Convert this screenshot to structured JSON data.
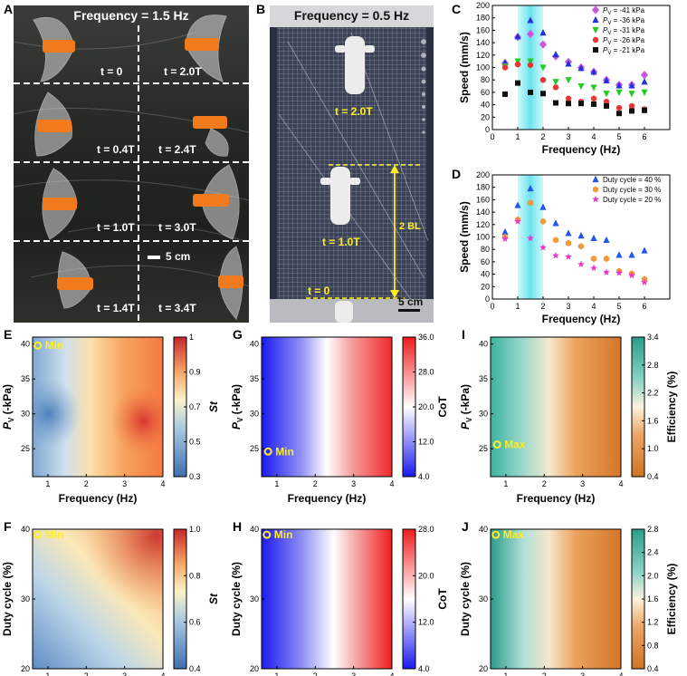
{
  "panels": {
    "A": {
      "label": "A",
      "title": "Frequency = 1.5 Hz",
      "time_labels": [
        "t = 0",
        "t = 2.0T",
        "t = 0.4T",
        "t = 2.4T",
        "t = 1.0T",
        "t = 3.0T",
        "t = 1.4T",
        "t = 3.4T"
      ],
      "scale_bar": "5 cm"
    },
    "B": {
      "label": "B",
      "title": "Frequency = 0.5 Hz",
      "time_labels": [
        "t = 2.0T",
        "t = 1.0T",
        "t = 0"
      ],
      "distance": "2 BL",
      "scale_bar": "5 cm"
    },
    "E": {
      "label": "E",
      "ylabel": "P_V (-kPa)",
      "xlabel": "Frequency (Hz)",
      "cbar_label": "St",
      "marker": "Min",
      "cbar_ticks": [
        "1",
        "0.9",
        "0.7",
        "0.5",
        "0.3"
      ]
    },
    "F": {
      "label": "F",
      "ylabel": "Duty cycle (%)",
      "xlabel": "Frequency (Hz)",
      "cbar_label": "St",
      "marker": "Min",
      "cbar_ticks": [
        "1.0",
        "0.8",
        "0.6",
        "0.4"
      ]
    },
    "G": {
      "label": "G",
      "ylabel": "P_V (-kPa)",
      "xlabel": "Frequency (Hz)",
      "cbar_label": "CoT",
      "marker": "Min",
      "cbar_ticks": [
        "36.0",
        "28.0",
        "20.0",
        "12.0",
        "4.0"
      ]
    },
    "H": {
      "label": "H",
      "ylabel": "Duty cycle (%)",
      "xlabel": "Frequency (Hz)",
      "cbar_label": "CoT",
      "marker": "Min",
      "cbar_ticks": [
        "28.0",
        "20.0",
        "12.0",
        "4.0"
      ]
    },
    "I": {
      "label": "I",
      "ylabel": "P_V (-kPa)",
      "xlabel": "Frequency (Hz)",
      "cbar_label": "Efficiency (%)",
      "marker": "Max",
      "cbar_ticks": [
        "3.4",
        "2.8",
        "2.2",
        "1.6",
        "1.0",
        "0.4"
      ]
    },
    "J": {
      "label": "J",
      "ylabel": "Duty cycle (%)",
      "xlabel": "Frequency (Hz)",
      "cbar_label": "Efficiency (%)",
      "marker": "Max",
      "cbar_ticks": [
        "2.8",
        "2.4",
        "2.0",
        "1.6",
        "1.2",
        "0.8",
        "0.4"
      ]
    }
  },
  "colors": {
    "highlight": "#8ee8f0",
    "dash": "#ffffff",
    "yellow": "#ffee22",
    "fin_orange": "#f07a1c"
  },
  "chart_data": [
    {
      "id": "C",
      "label": "C",
      "type": "scatter",
      "xlabel": "Frequency (Hz)",
      "ylabel": "Speed (mm/s)",
      "xlim": [
        0,
        7
      ],
      "ylim": [
        0,
        200
      ],
      "xticks": [
        0,
        1,
        2,
        3,
        4,
        5,
        6
      ],
      "yticks": [
        0,
        20,
        40,
        60,
        80,
        100,
        120,
        140,
        160,
        180,
        200
      ],
      "highlight_band": [
        1,
        2
      ],
      "legend_position": "top-right",
      "series": [
        {
          "name": "P_V = -41 kPa",
          "legend": "P",
          "sub": "V",
          "suffix": " = -41 kPa",
          "marker": "diamond",
          "color": "#cc55dd",
          "x": [
            0.5,
            1,
            1.5,
            2,
            2.5,
            3,
            3.5,
            4,
            4.5,
            5,
            5.5,
            6
          ],
          "y": [
            107,
            149,
            154,
            137,
            118,
            109,
            100,
            93,
            80,
            72,
            72,
            88
          ]
        },
        {
          "name": "P_V = -36 kPa",
          "legend": "P",
          "sub": "V",
          "suffix": " = -36 kPa",
          "marker": "triangle-up",
          "color": "#2233dd",
          "x": [
            0.5,
            1,
            1.5,
            2,
            2.5,
            3,
            3.5,
            4,
            4.5,
            5,
            5.5,
            6
          ],
          "y": [
            108,
            150,
            176,
            156,
            121,
            106,
            99,
            93,
            79,
            71,
            71,
            77
          ]
        },
        {
          "name": "P_V = -31 kPa",
          "legend": "P",
          "sub": "V",
          "suffix": " = -31 kPa",
          "marker": "triangle-down",
          "color": "#22cc22",
          "x": [
            0.5,
            1,
            1.5,
            2,
            2.5,
            3,
            3.5,
            4,
            4.5,
            5,
            5.5,
            6
          ],
          "y": [
            102,
            110,
            110,
            100,
            77,
            80,
            70,
            68,
            58,
            60,
            58,
            60
          ]
        },
        {
          "name": "P_V = -26 kPa",
          "legend": "P",
          "sub": "V",
          "suffix": " = -26 kPa",
          "marker": "circle",
          "color": "#ee3333",
          "x": [
            0.5,
            1,
            1.5,
            2,
            2.5,
            3,
            3.5,
            4,
            4.5,
            5,
            5.5,
            6
          ],
          "y": [
            100,
            105,
            104,
            80,
            68,
            50,
            45,
            50,
            45,
            35,
            38,
            33
          ]
        },
        {
          "name": "P_V = -21 kPa",
          "legend": "P",
          "sub": "V",
          "suffix": " = -21 kPa",
          "marker": "square",
          "color": "#111111",
          "x": [
            0.5,
            1,
            1.5,
            2,
            2.5,
            3,
            3.5,
            4,
            4.5,
            5,
            5.5,
            6
          ],
          "y": [
            57,
            75,
            60,
            58,
            43,
            42,
            42,
            41,
            38,
            26,
            30,
            31
          ]
        }
      ]
    },
    {
      "id": "D",
      "label": "D",
      "type": "scatter",
      "xlabel": "Frequency (Hz)",
      "ylabel": "Speed (mm/s)",
      "xlim": [
        0,
        7
      ],
      "ylim": [
        0,
        200
      ],
      "xticks": [
        0,
        1,
        2,
        3,
        4,
        5,
        6
      ],
      "yticks": [
        0,
        20,
        40,
        60,
        80,
        100,
        120,
        140,
        160,
        180,
        200
      ],
      "highlight_band": [
        1,
        2
      ],
      "legend_position": "top-right",
      "series": [
        {
          "name": "Duty cycle = 40 %",
          "legend": "Duty cycle = 40 %",
          "marker": "triangle-up",
          "color": "#2255ee",
          "x": [
            0.5,
            1,
            1.5,
            2,
            2.5,
            3,
            3.5,
            4,
            4.5,
            5,
            5.5,
            6
          ],
          "y": [
            108,
            151,
            178,
            148,
            122,
            106,
            102,
            98,
            95,
            71,
            71,
            78
          ]
        },
        {
          "name": "Duty cycle = 30 %",
          "legend": "Duty cycle = 30 %",
          "marker": "hexagon",
          "color": "#f09a3a",
          "x": [
            0.5,
            1,
            1.5,
            2,
            2.5,
            3,
            3.5,
            4,
            4.5,
            5,
            5.5,
            6
          ],
          "y": [
            100,
            128,
            155,
            125,
            95,
            90,
            85,
            65,
            65,
            45,
            41,
            32
          ]
        },
        {
          "name": "Duty cycle = 20 %",
          "legend": "Duty cycle = 20 %",
          "marker": "star",
          "color": "#ee33cc",
          "x": [
            0.5,
            1,
            1.5,
            2,
            2.5,
            3,
            3.5,
            4,
            4.5,
            5,
            5.5,
            6
          ],
          "y": [
            97,
            125,
            98,
            83,
            70,
            68,
            56,
            50,
            43,
            42,
            38,
            27
          ]
        }
      ]
    }
  ],
  "heatmaps": {
    "E": {
      "x": [
        0.6,
        4
      ],
      "y": [
        21,
        41
      ],
      "xticks": [
        "1",
        "2",
        "3",
        "4"
      ],
      "yticks": [
        "40",
        "35",
        "30",
        "25"
      ]
    },
    "F": {
      "x": [
        0.6,
        4
      ],
      "y": [
        20,
        40
      ],
      "xticks": [
        "1",
        "2",
        "3",
        "4"
      ],
      "yticks": [
        "40",
        "30",
        "20"
      ]
    },
    "G": {
      "x": [
        0.6,
        4
      ],
      "y": [
        21,
        41
      ],
      "xticks": [
        "1",
        "2",
        "3",
        "4"
      ],
      "yticks": [
        "40",
        "35",
        "30",
        "25"
      ]
    },
    "H": {
      "x": [
        0.6,
        4
      ],
      "y": [
        20,
        40
      ],
      "xticks": [
        "1",
        "2",
        "3",
        "4"
      ],
      "yticks": [
        "40",
        "30",
        "20"
      ]
    },
    "I": {
      "x": [
        0.6,
        4
      ],
      "y": [
        21,
        41
      ],
      "xticks": [
        "1",
        "2",
        "3",
        "4"
      ],
      "yticks": [
        "40",
        "35",
        "30",
        "25"
      ]
    },
    "J": {
      "x": [
        0.6,
        4
      ],
      "y": [
        20,
        40
      ],
      "xticks": [
        "1",
        "2",
        "3",
        "4"
      ],
      "yticks": [
        "40",
        "30",
        "20"
      ]
    }
  }
}
